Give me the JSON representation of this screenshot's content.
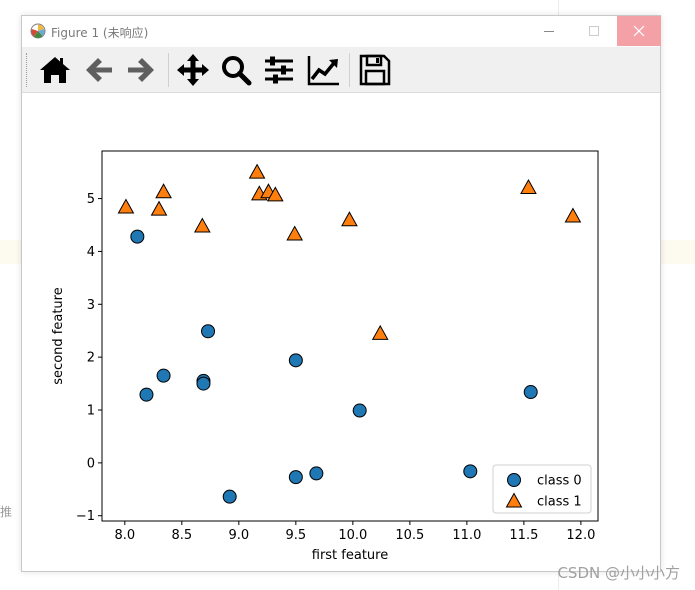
{
  "window": {
    "title": "Figure 1 (未响应)"
  },
  "toolbar": {
    "buttons": [
      {
        "name": "home",
        "icon": "home-icon"
      },
      {
        "name": "back",
        "icon": "arrow-left-icon"
      },
      {
        "name": "forward",
        "icon": "arrow-right-icon"
      },
      {
        "name": "pan",
        "icon": "move-icon"
      },
      {
        "name": "zoom",
        "icon": "magnifier-icon"
      },
      {
        "name": "subplots",
        "icon": "sliders-icon"
      },
      {
        "name": "edit-axes",
        "icon": "chart-line-icon"
      },
      {
        "name": "save",
        "icon": "floppy-icon"
      }
    ]
  },
  "chart_data": {
    "type": "scatter",
    "title": "",
    "xlabel": "first feature",
    "ylabel": "second feature",
    "xlim": [
      7.8,
      12.15
    ],
    "ylim": [
      -1.1,
      5.9
    ],
    "xticks": [
      "8.0",
      "8.5",
      "9.0",
      "9.5",
      "10.0",
      "10.5",
      "11.0",
      "11.5",
      "12.0"
    ],
    "yticks": [
      "−1",
      "0",
      "1",
      "2",
      "3",
      "4",
      "5"
    ],
    "grid": false,
    "legend_position": "lower-right",
    "series": [
      {
        "name": "class 0",
        "marker": "circle",
        "color": "#1f77b4",
        "points": [
          [
            8.11,
            4.28
          ],
          [
            8.19,
            1.29
          ],
          [
            8.34,
            1.65
          ],
          [
            8.69,
            1.55
          ],
          [
            8.69,
            1.5
          ],
          [
            8.73,
            2.49
          ],
          [
            8.92,
            -0.64
          ],
          [
            9.5,
            1.94
          ],
          [
            9.5,
            -0.27
          ],
          [
            9.68,
            -0.2
          ],
          [
            10.06,
            0.99
          ],
          [
            11.03,
            -0.16
          ],
          [
            11.56,
            1.34
          ]
        ]
      },
      {
        "name": "class 1",
        "marker": "triangle",
        "color": "#ff7f0e",
        "points": [
          [
            8.01,
            4.84
          ],
          [
            8.3,
            4.8
          ],
          [
            8.34,
            5.13
          ],
          [
            8.68,
            4.48
          ],
          [
            9.16,
            5.5
          ],
          [
            9.18,
            5.09
          ],
          [
            9.26,
            5.13
          ],
          [
            9.32,
            5.07
          ],
          [
            9.49,
            4.33
          ],
          [
            9.97,
            4.6
          ],
          [
            10.24,
            2.45
          ],
          [
            11.54,
            5.21
          ],
          [
            11.93,
            4.67
          ]
        ]
      }
    ]
  },
  "watermark": "CSDN @小小小方",
  "background": {
    "left_glyph": "推"
  }
}
